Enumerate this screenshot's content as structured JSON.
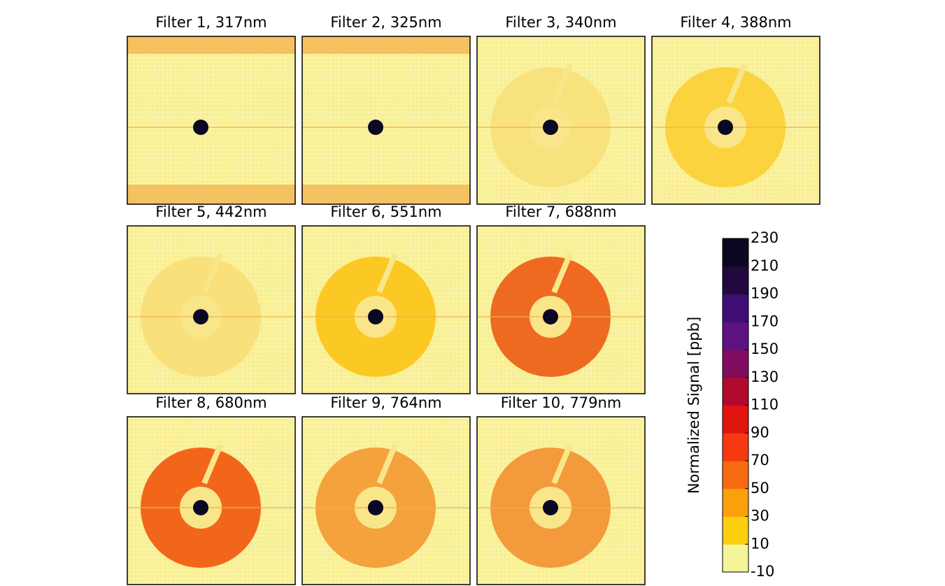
{
  "chart_data": {
    "type": "image-grid",
    "panels": [
      {
        "title": "Filter 1, 317nm"
      },
      {
        "title": "Filter 2, 325nm"
      },
      {
        "title": "Filter 3, 340nm"
      },
      {
        "title": "Filter 4, 388nm"
      },
      {
        "title": "Filter 5, 442nm"
      },
      {
        "title": "Filter 6, 551nm"
      },
      {
        "title": "Filter 7, 688nm"
      },
      {
        "title": "Filter 8, 680nm"
      },
      {
        "title": "Filter 9, 764nm"
      },
      {
        "title": "Filter 10, 779nm"
      }
    ],
    "colorbar": {
      "label": "Normalized Signal [ppb]",
      "lim": [
        -10,
        230
      ],
      "ticks": [
        -10,
        10,
        30,
        50,
        70,
        90,
        110,
        130,
        150,
        170,
        190,
        210,
        230
      ],
      "colors": [
        "#f6f49b",
        "#fcd00f",
        "#fba00a",
        "#f76b10",
        "#f53a12",
        "#e0150f",
        "#b20a2c",
        "#7f0c5e",
        "#5c1280",
        "#3f0e73",
        "#22093d",
        "#0a0822"
      ]
    }
  }
}
